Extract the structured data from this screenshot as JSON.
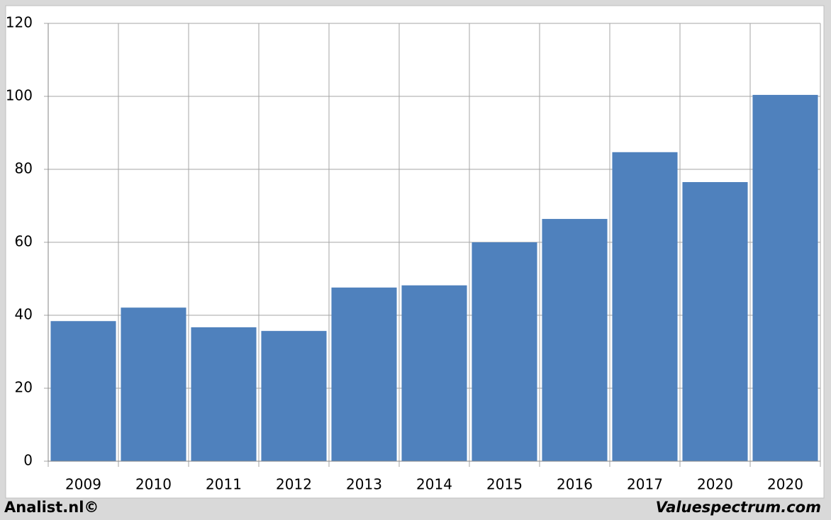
{
  "chart_data": {
    "type": "bar",
    "categories": [
      "2009",
      "2010",
      "2011",
      "2012",
      "2013",
      "2014",
      "2015",
      "2016",
      "2017",
      "2020",
      "2020"
    ],
    "values": [
      38.4,
      42.1,
      36.7,
      35.7,
      47.6,
      48.2,
      60,
      66.4,
      84.7,
      76.5,
      100.4
    ],
    "color": "#4f81bd",
    "ylim": [
      0,
      120
    ],
    "yticks": [
      0,
      20,
      40,
      60,
      80,
      100,
      120
    ],
    "grid": true
  },
  "credits": {
    "left": "Analist.nl©",
    "right": "Valuespectrum.com"
  }
}
